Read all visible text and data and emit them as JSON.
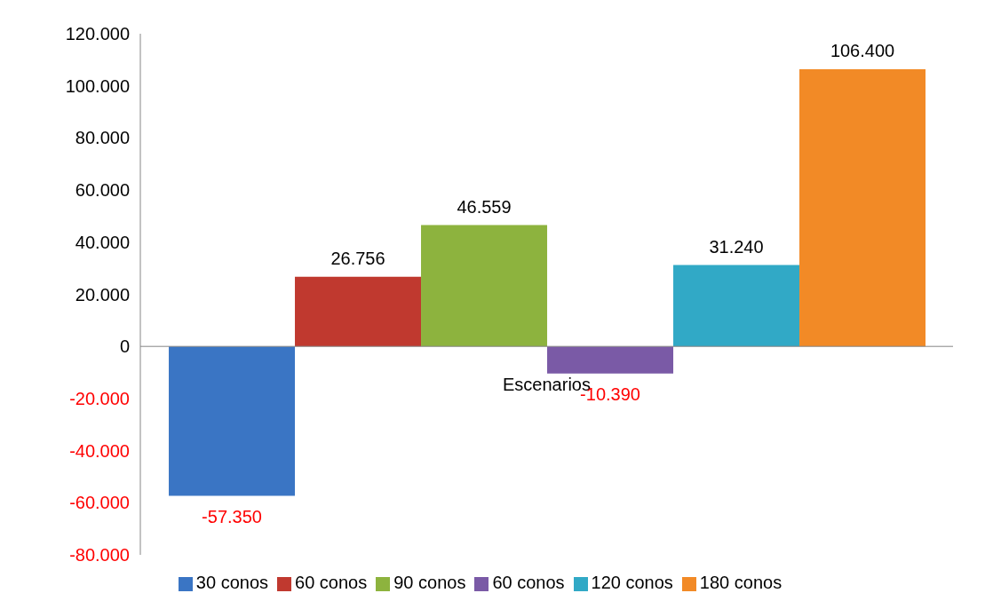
{
  "chart_data": {
    "type": "bar",
    "xlabel": "Escenarios",
    "categories": [
      null
    ],
    "series": [
      {
        "name": "30 conos",
        "color": "#3a75c4",
        "values": [
          -57350
        ],
        "value_labels": [
          "-57.350"
        ]
      },
      {
        "name": "60 conos",
        "color": "#c0392f",
        "values": [
          26756
        ],
        "value_labels": [
          "26.756"
        ]
      },
      {
        "name": "90 conos",
        "color": "#8db33e",
        "values": [
          46559
        ],
        "value_labels": [
          "46.559"
        ]
      },
      {
        "name": "60 conos",
        "color": "#7a5aa6",
        "values": [
          -10390
        ],
        "value_labels": [
          "-10.390"
        ]
      },
      {
        "name": "120 conos",
        "color": "#31a9c6",
        "values": [
          31240
        ],
        "value_labels": [
          "31.240"
        ]
      },
      {
        "name": "180 conos",
        "color": "#f28a26",
        "values": [
          106400
        ],
        "value_labels": [
          "106.400"
        ]
      }
    ],
    "ylim": [
      -80000,
      120000
    ],
    "yticks": [
      {
        "value": -80000,
        "label": "-80.000"
      },
      {
        "value": -60000,
        "label": "-60.000"
      },
      {
        "value": -40000,
        "label": "-40.000"
      },
      {
        "value": -20000,
        "label": "-20.000"
      },
      {
        "value": 0,
        "label": "0"
      },
      {
        "value": 20000,
        "label": "20.000"
      },
      {
        "value": 40000,
        "label": "40.000"
      },
      {
        "value": 60000,
        "label": "60.000"
      },
      {
        "value": 80000,
        "label": "80.000"
      },
      {
        "value": 100000,
        "label": "100.000"
      },
      {
        "value": 120000,
        "label": "120.000"
      }
    ],
    "legend": "bottom"
  }
}
